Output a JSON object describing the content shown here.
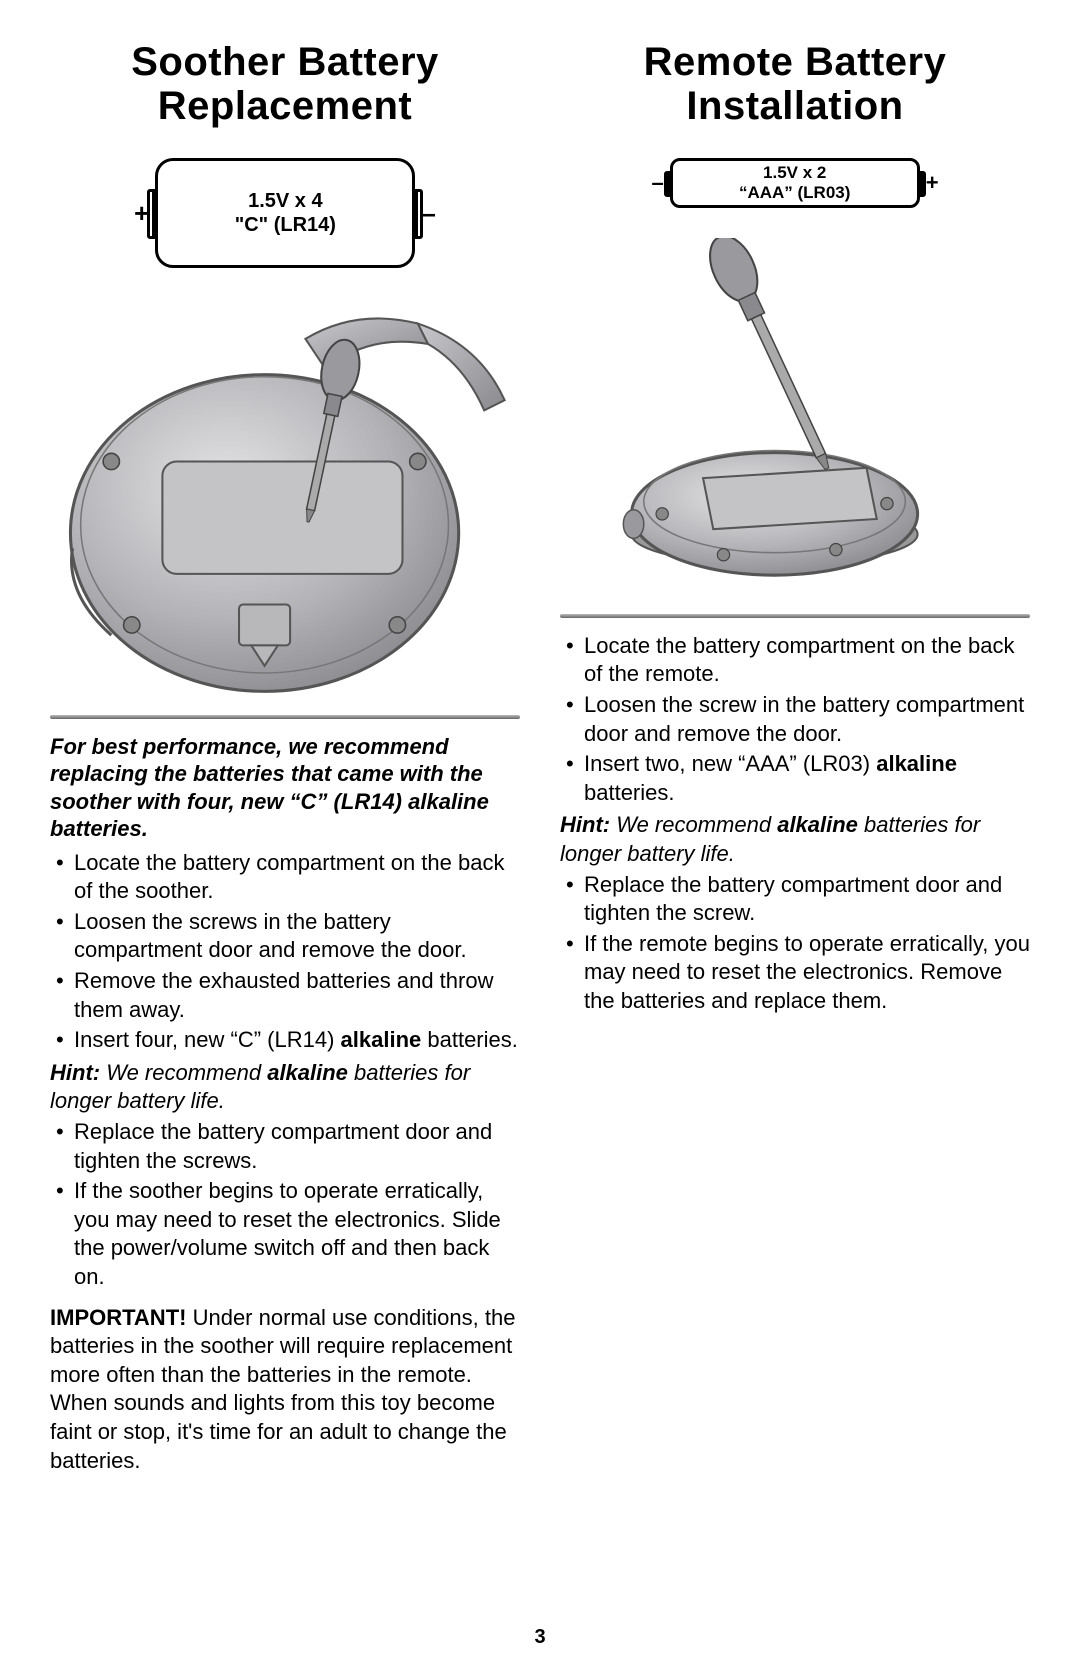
{
  "page_number": "3",
  "left": {
    "heading_line1": "Soother Battery",
    "heading_line2": "Replacement",
    "battery": {
      "left_polarity": "+",
      "right_polarity": "–",
      "label_line1": "1.5V x 4",
      "label_line2": "\"C\" (LR14)"
    },
    "intro_html": "For best performance, we recommend replacing the batteries that came with the soother with four, new “C” (LR14) alkaline batteries.",
    "bullets_a": [
      "Locate the battery compartment on the back of the soother.",
      "Loosen the screws in the battery compartment door and remove the door.",
      "Remove the exhausted batteries and throw them away.",
      "Insert four, new “C” (LR14) <b>alkaline</b> batteries."
    ],
    "hint_html": "<b>Hint:</b> We recommend <b>alkaline</b> batteries for longer battery life.",
    "bullets_b": [
      "Replace the battery compartment door and tighten the screws.",
      "If the soother begins to operate erratically, you may need to reset the electronics. Slide the power/volume switch off and then back on."
    ],
    "important_html": "<b>IMPORTANT!</b> Under normal use conditions, the batteries in the soother will require replacement more often than the batteries in the remote. When sounds and lights from this toy become faint or stop, it's time for an adult to change the batteries."
  },
  "right": {
    "heading_line1": "Remote Battery",
    "heading_line2": "Installation",
    "battery": {
      "left_polarity": "–",
      "right_polarity": "+",
      "label_line1": "1.5V x 2",
      "label_line2": "“AAA” (LR03)"
    },
    "bullets_a": [
      "Locate the battery compartment on the back of the remote.",
      "Loosen the screw in the battery compartment door and remove the door.",
      "Insert two, new “AAA” (LR03) <b>alkaline</b> batteries."
    ],
    "hint_html": "<b>Hint:</b> We recommend <b>alkaline</b> batteries for longer battery life.",
    "bullets_b": [
      "Replace the battery compartment door and tighten the screw.",
      "If the remote begins to operate erratically, you may need to reset the electronics. Remove the batteries and replace them."
    ]
  },
  "illustration_colors": {
    "body_light": "#cfcfd1",
    "body_mid": "#a9a9ad",
    "body_dark": "#8c8c90",
    "stroke": "#555559",
    "panel": "#bfbfc2",
    "screw": "#777",
    "handle": "#9a9a9e"
  }
}
